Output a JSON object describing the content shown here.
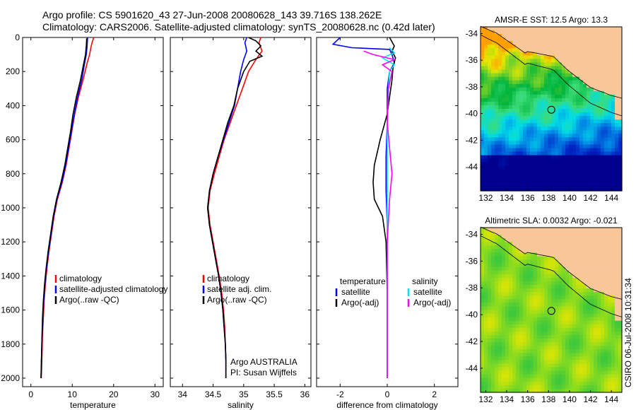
{
  "title_line1": "Argo profile: CS 5901620_43 27-Jun-2008 20080628_143 39.716S 138.262E",
  "title_line2": "Climatology: CARS2006. Satellite-adjusted climatology: synTS_20080628.nc (0.42d later)",
  "side_label": "CSIRO 06-Jul-2008 10:31:34",
  "colors": {
    "climatology": "#ff0000",
    "satellite_adjusted": "#0000ff",
    "argo": "#000000",
    "salinity_satellite": "#00e5ee",
    "salinity_argo": "#ff00ff",
    "land": "#f7c79a"
  },
  "chart_data": [
    {
      "type": "line",
      "xlabel": "temperature",
      "ylabel": "",
      "xlim": [
        -2,
        32
      ],
      "ylim": [
        0,
        2050
      ],
      "y_reversed": true,
      "xticks": [
        "0",
        "10",
        "20",
        "30"
      ],
      "yticks": [
        "0",
        "200",
        "400",
        "600",
        "800",
        "1000",
        "1200",
        "1400",
        "1600",
        "1800",
        "2000"
      ],
      "legend": [
        "climatology",
        "satellite-adjusted climatology",
        "Argo(..raw -QC)"
      ],
      "series": [
        {
          "name": "climatology",
          "color": "#ff0000",
          "points": [
            [
              15.2,
              0
            ],
            [
              14.8,
              30
            ],
            [
              14.5,
              60
            ],
            [
              14.2,
              100
            ],
            [
              13.6,
              150
            ],
            [
              12.6,
              250
            ],
            [
              11.5,
              350
            ],
            [
              10.6,
              450
            ],
            [
              9.9,
              550
            ],
            [
              9.2,
              650
            ],
            [
              8.5,
              750
            ],
            [
              7.6,
              850
            ],
            [
              6.4,
              950
            ],
            [
              5.6,
              1050
            ],
            [
              5.0,
              1150
            ],
            [
              4.4,
              1250
            ],
            [
              3.9,
              1350
            ],
            [
              3.5,
              1450
            ],
            [
              3.2,
              1550
            ],
            [
              3.0,
              1650
            ],
            [
              2.8,
              1750
            ],
            [
              2.7,
              1850
            ],
            [
              2.6,
              1950
            ],
            [
              2.5,
              2000
            ]
          ]
        },
        {
          "name": "satellite-adjusted climatology",
          "color": "#0000ff",
          "points": [
            [
              13.7,
              0
            ],
            [
              13.6,
              50
            ],
            [
              13.4,
              100
            ],
            [
              13.0,
              150
            ],
            [
              12.3,
              250
            ],
            [
              11.3,
              350
            ],
            [
              10.5,
              450
            ],
            [
              9.8,
              550
            ],
            [
              9.1,
              650
            ],
            [
              8.4,
              750
            ],
            [
              7.5,
              850
            ],
            [
              6.3,
              950
            ],
            [
              5.5,
              1050
            ],
            [
              4.9,
              1150
            ],
            [
              4.3,
              1250
            ],
            [
              3.8,
              1350
            ],
            [
              3.4,
              1450
            ],
            [
              3.1,
              1550
            ],
            [
              2.9,
              1650
            ],
            [
              2.7,
              1750
            ],
            [
              2.6,
              1850
            ],
            [
              2.5,
              1950
            ],
            [
              2.4,
              2000
            ]
          ]
        },
        {
          "name": "Argo(..raw -QC)",
          "color": "#000000",
          "points": [
            [
              13.5,
              5
            ],
            [
              13.4,
              50
            ],
            [
              13.2,
              100
            ],
            [
              12.8,
              150
            ],
            [
              12.0,
              250
            ],
            [
              11.0,
              350
            ],
            [
              10.2,
              450
            ],
            [
              9.6,
              550
            ],
            [
              8.9,
              650
            ],
            [
              8.2,
              750
            ],
            [
              7.3,
              850
            ],
            [
              6.2,
              950
            ],
            [
              5.4,
              1050
            ],
            [
              4.8,
              1150
            ],
            [
              4.2,
              1250
            ],
            [
              3.7,
              1350
            ],
            [
              3.3,
              1450
            ],
            [
              3.0,
              1550
            ],
            [
              2.8,
              1650
            ],
            [
              2.7,
              1750
            ],
            [
              2.6,
              1850
            ],
            [
              2.5,
              1950
            ],
            [
              2.5,
              2000
            ]
          ]
        }
      ]
    },
    {
      "type": "line",
      "xlabel": "salinity",
      "ylabel": "",
      "xlim": [
        33.8,
        36.1
      ],
      "ylim": [
        0,
        2050
      ],
      "y_reversed": true,
      "xticks": [
        "34",
        "34.5",
        "35",
        "35.5",
        "36"
      ],
      "legend": [
        "climatology",
        "satellite adj. clim.",
        "Argo(..raw -QC)"
      ],
      "annotation": [
        "Argo AUSTRALIA",
        "PI: Susan Wijffels"
      ],
      "series": [
        {
          "name": "climatology",
          "color": "#ff0000",
          "points": [
            [
              35.28,
              0
            ],
            [
              35.25,
              30
            ],
            [
              35.3,
              80
            ],
            [
              35.2,
              130
            ],
            [
              35.08,
              200
            ],
            [
              34.98,
              300
            ],
            [
              34.88,
              400
            ],
            [
              34.78,
              500
            ],
            [
              34.68,
              600
            ],
            [
              34.6,
              700
            ],
            [
              34.52,
              800
            ],
            [
              34.45,
              900
            ],
            [
              34.42,
              1000
            ],
            [
              34.45,
              1100
            ],
            [
              34.5,
              1200
            ],
            [
              34.55,
              1300
            ],
            [
              34.6,
              1400
            ],
            [
              34.64,
              1500
            ],
            [
              34.67,
              1600
            ],
            [
              34.69,
              1700
            ],
            [
              34.7,
              1800
            ],
            [
              34.71,
              1900
            ],
            [
              34.71,
              2000
            ]
          ]
        },
        {
          "name": "satellite adj. clim.",
          "color": "#0000ff",
          "points": [
            [
              35.05,
              0
            ],
            [
              35.02,
              30
            ],
            [
              35.05,
              80
            ],
            [
              35.0,
              130
            ],
            [
              34.95,
              200
            ],
            [
              34.9,
              300
            ],
            [
              34.85,
              400
            ],
            [
              34.76,
              500
            ],
            [
              34.67,
              600
            ],
            [
              34.58,
              700
            ],
            [
              34.5,
              800
            ],
            [
              34.44,
              900
            ],
            [
              34.41,
              1000
            ],
            [
              34.44,
              1100
            ],
            [
              34.49,
              1200
            ],
            [
              34.54,
              1300
            ],
            [
              34.59,
              1400
            ],
            [
              34.63,
              1500
            ],
            [
              34.66,
              1600
            ],
            [
              34.68,
              1700
            ],
            [
              34.7,
              1800
            ],
            [
              34.71,
              1900
            ],
            [
              34.71,
              2000
            ]
          ]
        },
        {
          "name": "Argo(..raw -QC)",
          "color": "#000000",
          "points": [
            [
              35.08,
              0
            ],
            [
              35.2,
              20
            ],
            [
              35.28,
              50
            ],
            [
              35.2,
              80
            ],
            [
              35.3,
              110
            ],
            [
              35.1,
              140
            ],
            [
              35.0,
              200
            ],
            [
              34.9,
              300
            ],
            [
              34.84,
              400
            ],
            [
              34.74,
              500
            ],
            [
              34.66,
              600
            ],
            [
              34.58,
              700
            ],
            [
              34.5,
              800
            ],
            [
              34.44,
              900
            ],
            [
              34.41,
              1000
            ],
            [
              34.44,
              1100
            ],
            [
              34.49,
              1200
            ],
            [
              34.54,
              1300
            ],
            [
              34.59,
              1400
            ],
            [
              34.63,
              1500
            ],
            [
              34.66,
              1600
            ],
            [
              34.68,
              1700
            ],
            [
              34.7,
              1800
            ],
            [
              34.71,
              1900
            ],
            [
              34.71,
              2000
            ]
          ]
        }
      ]
    },
    {
      "type": "line",
      "xlabel": "difference from climatology",
      "ylabel": "",
      "xlim": [
        -3,
        3
      ],
      "ylim": [
        0,
        2050
      ],
      "y_reversed": true,
      "xticks": [
        "-2",
        "0",
        "2"
      ],
      "legend_groups": [
        {
          "heading": "temperature",
          "items": [
            "satellite",
            "Argo(-adj)"
          ]
        },
        {
          "heading": "salinity",
          "items": [
            "satellite",
            "Argo(-adj)"
          ]
        }
      ],
      "series": [
        {
          "name": "temperature satellite",
          "color": "#0000ff",
          "points": [
            [
              -2.0,
              0
            ],
            [
              -2.3,
              40
            ],
            [
              -1.5,
              60
            ],
            [
              0.1,
              70
            ],
            [
              0.2,
              100
            ],
            [
              0.3,
              150
            ],
            [
              0.1,
              200
            ],
            [
              0.0,
              300
            ],
            [
              0.0,
              500
            ],
            [
              -0.05,
              700
            ],
            [
              -0.05,
              900
            ],
            [
              0.0,
              1100
            ],
            [
              0.0,
              1400
            ],
            [
              0.0,
              1700
            ],
            [
              0.0,
              2000
            ]
          ]
        },
        {
          "name": "temperature Argo(-adj)",
          "color": "#000000",
          "points": [
            [
              0.1,
              0
            ],
            [
              0.3,
              50
            ],
            [
              0.2,
              80
            ],
            [
              0.35,
              120
            ],
            [
              0.25,
              170
            ],
            [
              0.2,
              250
            ],
            [
              0.1,
              350
            ],
            [
              0.0,
              450
            ],
            [
              -0.3,
              600
            ],
            [
              -0.55,
              750
            ],
            [
              -0.6,
              850
            ],
            [
              -0.55,
              950
            ],
            [
              -0.2,
              1050
            ],
            [
              -0.05,
              1200
            ],
            [
              0.0,
              1500
            ],
            [
              0.0,
              2000
            ]
          ]
        },
        {
          "name": "salinity satellite",
          "color": "#00e5ee",
          "points": [
            [
              0.1,
              60
            ],
            [
              0.3,
              90
            ],
            [
              -0.2,
              120
            ],
            [
              0.3,
              160
            ],
            [
              0.1,
              200
            ],
            [
              0.05,
              300
            ],
            [
              0.0,
              500
            ],
            [
              0.0,
              800
            ],
            [
              0.0,
              1200
            ],
            [
              0.0,
              1600
            ],
            [
              0.0,
              2000
            ]
          ]
        },
        {
          "name": "salinity Argo(-adj)",
          "color": "#ff00ff",
          "points": [
            [
              -1.0,
              80
            ],
            [
              -0.6,
              100
            ],
            [
              0.3,
              130
            ],
            [
              -0.2,
              160
            ],
            [
              0.2,
              200
            ],
            [
              0.05,
              300
            ],
            [
              0.0,
              500
            ],
            [
              0.1,
              650
            ],
            [
              0.2,
              800
            ],
            [
              0.1,
              950
            ],
            [
              0.0,
              1200
            ],
            [
              0.0,
              1600
            ],
            [
              0.0,
              2000
            ]
          ]
        }
      ]
    },
    {
      "type": "heatmap",
      "title": "AMSR-E SST: 12.5 Argo: 13.3",
      "xlim": [
        131.5,
        145
      ],
      "ylim": [
        -45.8,
        -33.5
      ],
      "xticks": [
        "132",
        "134",
        "136",
        "138",
        "140",
        "142",
        "144"
      ],
      "yticks": [
        "-34",
        "-36",
        "-38",
        "-40",
        "-42",
        "-44"
      ],
      "marker": [
        138.262,
        -39.716
      ]
    },
    {
      "type": "heatmap",
      "title": "Altimetric SLA: 0.0032 Argo: -0.021",
      "xlim": [
        131.5,
        145
      ],
      "ylim": [
        -45.8,
        -33.5
      ],
      "xticks": [
        "132",
        "134",
        "136",
        "138",
        "140",
        "142",
        "144"
      ],
      "yticks": [
        "-34",
        "-36",
        "-38",
        "-40",
        "-42",
        "-44"
      ],
      "marker": [
        138.262,
        -39.716
      ]
    }
  ]
}
